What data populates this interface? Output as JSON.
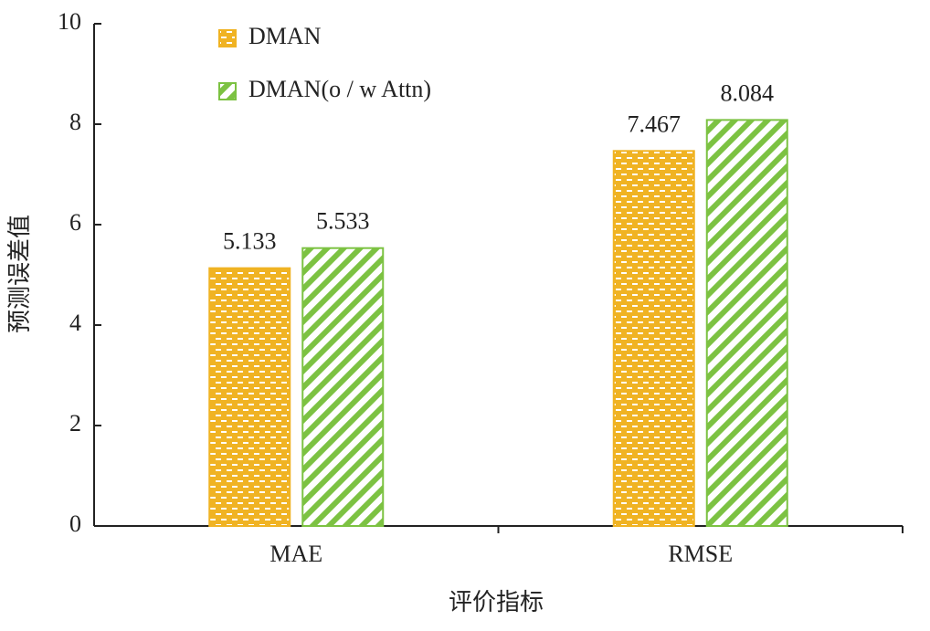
{
  "chart_data": {
    "type": "bar",
    "x_label": "评价指标",
    "y_label": "预测误差值",
    "categories": [
      "MAE",
      "RMSE"
    ],
    "series": [
      {
        "name": "DMAN",
        "color": "#f0b323",
        "values": [
          5.133,
          7.467
        ]
      },
      {
        "name": "DMAN(o / w Attn)",
        "color": "#7cc242",
        "values": [
          5.533,
          8.084
        ]
      }
    ],
    "ylim": [
      0,
      10
    ],
    "yticks": [
      0,
      2,
      4,
      6,
      8,
      10
    ],
    "grid": false,
    "legend": "upper left"
  }
}
